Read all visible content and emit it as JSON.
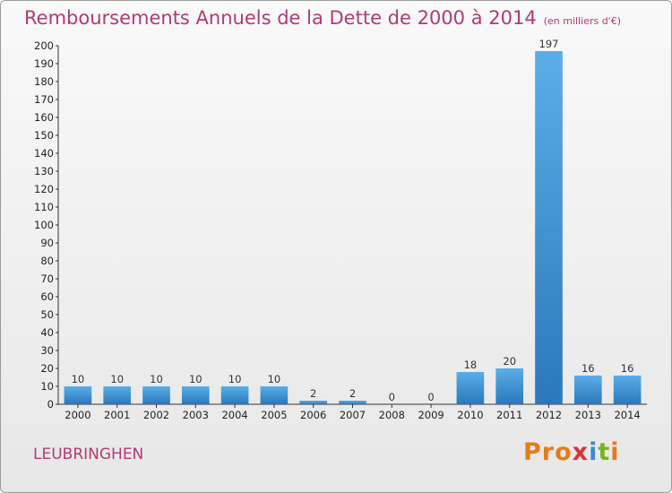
{
  "title": "Remboursements Annuels de la Dette de 2000 à 2014",
  "unit": "(en milliers d'€)",
  "place": "LEUBRINGHEN",
  "logo": {
    "p1": "Pro",
    "p2": "x",
    "p3": "i",
    "p4": "t",
    "p5": "i"
  },
  "colors": {
    "bar_top": "#5aaee8",
    "bar_bottom": "#2a78bb",
    "title": "#b03a73"
  },
  "chart_data": {
    "type": "bar",
    "categories": [
      "2000",
      "2001",
      "2002",
      "2003",
      "2004",
      "2005",
      "2006",
      "2007",
      "2008",
      "2009",
      "2010",
      "2011",
      "2012",
      "2013",
      "2014"
    ],
    "values": [
      10,
      10,
      10,
      10,
      10,
      10,
      2,
      2,
      0,
      0,
      18,
      20,
      197,
      16,
      16
    ],
    "ylim": [
      0,
      200
    ],
    "yticks": [
      0,
      10,
      20,
      30,
      40,
      50,
      60,
      70,
      80,
      90,
      100,
      110,
      120,
      130,
      140,
      150,
      160,
      170,
      180,
      190,
      200
    ],
    "grid": false,
    "data_labels": true
  }
}
